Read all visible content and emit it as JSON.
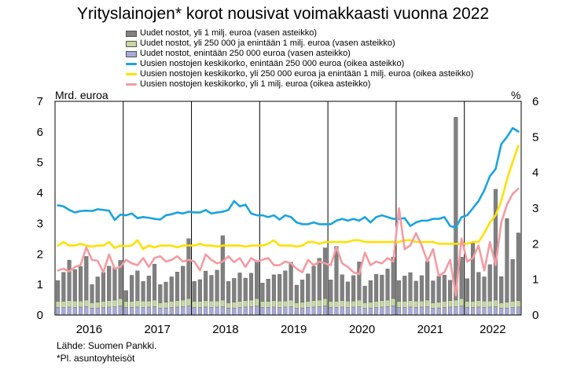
{
  "title": "Yrityslainojen* korot nousivat voimakkaasti vuonna 2022",
  "legend": [
    {
      "label": "Uudet nostot, yli 1 milj. euroa (vasen asteikko)",
      "kind": "bar",
      "color": "#808080"
    },
    {
      "label": "Uudet nostot, yli 250 000  ja enintään 1 milj. euroa (vasen asteikko)",
      "kind": "bar",
      "color": "#c7d9a0"
    },
    {
      "label": "Uudet nostot, enintään 250 000 euroa (vasen asteikko)",
      "kind": "bar",
      "color": "#a7a9da"
    },
    {
      "label": "Uusien nostojen keskikorko, enintään 250 000 euroa (oikea asteikko)",
      "kind": "line",
      "color": "#1aa3e0"
    },
    {
      "label": "Uusien nostojen keskikorko, yli 250 000 euroa ja enintään 1 milj. euroa (oikea asteikko)",
      "kind": "line",
      "color": "#ffe000"
    },
    {
      "label": "Uusien nostojen keskikorko, yli 1 milj. euroa (oikea asteikko)",
      "kind": "line",
      "color": "#f49ba1"
    }
  ],
  "left_unit": "Mrd. euroa",
  "right_unit": "%",
  "source": "Lähde: Suomen Pankki.",
  "footnote": "*Pl. asuntoyhteisöt",
  "chart_data": {
    "type": "bar+line",
    "x_tick_labels": [
      "2016",
      "2017",
      "2018",
      "2019",
      "2020",
      "2021",
      "2022"
    ],
    "y_left": {
      "ylim": [
        0,
        7
      ],
      "ticks": [
        0,
        1,
        2,
        3,
        4,
        5,
        6,
        7
      ]
    },
    "y_right": {
      "ylim": [
        0,
        6
      ],
      "ticks": [
        0,
        1,
        2,
        3,
        4,
        5,
        6
      ]
    },
    "months_per_year": 12,
    "month_count": 82,
    "grid": "vertical year separators",
    "legend_position": "top",
    "bars_stacked": [
      {
        "name": "Uudet nostot, enintään 250 000 euroa (vasen asteikko)",
        "color": "#a7a9da",
        "values": [
          0.25,
          0.25,
          0.26,
          0.25,
          0.26,
          0.27,
          0.22,
          0.23,
          0.25,
          0.26,
          0.27,
          0.3,
          0.25,
          0.25,
          0.26,
          0.25,
          0.26,
          0.27,
          0.22,
          0.23,
          0.25,
          0.26,
          0.27,
          0.3,
          0.25,
          0.25,
          0.26,
          0.25,
          0.26,
          0.27,
          0.22,
          0.23,
          0.25,
          0.26,
          0.27,
          0.3,
          0.25,
          0.25,
          0.26,
          0.25,
          0.26,
          0.27,
          0.22,
          0.23,
          0.25,
          0.26,
          0.27,
          0.3,
          0.25,
          0.25,
          0.26,
          0.25,
          0.26,
          0.27,
          0.22,
          0.23,
          0.25,
          0.26,
          0.27,
          0.3,
          0.25,
          0.25,
          0.26,
          0.25,
          0.26,
          0.27,
          0.22,
          0.23,
          0.25,
          0.26,
          0.27,
          0.3,
          0.25,
          0.25,
          0.26,
          0.25,
          0.26,
          0.27,
          0.22,
          0.23,
          0.25,
          0.26
        ]
      },
      {
        "name": "Uudet nostot, yli 250 000  ja enintään 1 milj. euroa (vasen asteikko)",
        "color": "#c7d9a0",
        "values": [
          0.2,
          0.2,
          0.21,
          0.21,
          0.2,
          0.22,
          0.18,
          0.19,
          0.2,
          0.21,
          0.22,
          0.24,
          0.2,
          0.2,
          0.21,
          0.21,
          0.2,
          0.22,
          0.18,
          0.19,
          0.2,
          0.21,
          0.22,
          0.24,
          0.2,
          0.2,
          0.21,
          0.21,
          0.2,
          0.22,
          0.18,
          0.19,
          0.2,
          0.21,
          0.22,
          0.24,
          0.2,
          0.2,
          0.21,
          0.21,
          0.2,
          0.22,
          0.18,
          0.19,
          0.2,
          0.21,
          0.22,
          0.24,
          0.2,
          0.2,
          0.21,
          0.21,
          0.2,
          0.22,
          0.18,
          0.19,
          0.2,
          0.21,
          0.22,
          0.24,
          0.2,
          0.2,
          0.21,
          0.21,
          0.2,
          0.22,
          0.18,
          0.19,
          0.2,
          0.21,
          0.22,
          0.24,
          0.2,
          0.2,
          0.21,
          0.21,
          0.2,
          0.22,
          0.18,
          0.19,
          0.2,
          0.21
        ]
      },
      {
        "name": "Uudet nostot, yli 1 milj. euroa (vasen asteikko)",
        "color": "#808080",
        "values": [
          0.68,
          0.95,
          1.33,
          1.03,
          1.13,
          1.43,
          0.6,
          0.83,
          0.95,
          1.13,
          1.06,
          1.25,
          0.35,
          0.85,
          0.98,
          0.64,
          0.82,
          1.18,
          0.6,
          0.66,
          0.8,
          0.94,
          1.11,
          1.96,
          0.65,
          0.71,
          0.97,
          0.84,
          1.01,
          2.11,
          0.7,
          0.78,
          0.93,
          0.74,
          0.88,
          1.2,
          0.6,
          0.73,
          0.85,
          0.87,
          0.99,
          1.24,
          0.58,
          0.73,
          0.9,
          1.13,
          1.37,
          1.66,
          0.7,
          1.8,
          0.85,
          0.63,
          0.83,
          1.25,
          0.55,
          0.71,
          0.88,
          0.84,
          1.02,
          1.36,
          0.68,
          0.83,
          0.92,
          0.65,
          0.83,
          1.27,
          0.72,
          0.85,
          0.86,
          0.67,
          5.99,
          1.36,
          0.74,
          1.91,
          0.93,
          0.79,
          1.19,
          3.63,
          0.86,
          2.74,
          1.37,
          2.22
        ]
      }
    ],
    "lines": [
      {
        "name": "Uusien nostojen keskikorko, enintään 250 000 euroa (oikea asteikko)",
        "color": "#1aa3e0",
        "values": [
          3.08,
          3.05,
          2.95,
          2.88,
          2.92,
          2.93,
          2.92,
          2.97,
          2.95,
          2.93,
          2.67,
          2.82,
          2.8,
          2.85,
          2.72,
          2.75,
          2.73,
          2.7,
          2.68,
          2.8,
          2.83,
          2.88,
          2.85,
          2.9,
          2.88,
          2.88,
          2.95,
          2.85,
          2.88,
          2.9,
          2.95,
          3.2,
          3.05,
          3.1,
          2.85,
          2.8,
          2.8,
          2.75,
          2.8,
          2.68,
          2.8,
          2.75,
          2.6,
          2.55,
          2.55,
          2.6,
          2.55,
          2.55,
          2.55,
          2.65,
          2.7,
          2.65,
          2.7,
          2.65,
          2.75,
          2.6,
          2.75,
          2.8,
          2.75,
          2.7,
          2.7,
          2.72,
          2.5,
          2.6,
          2.65,
          2.65,
          2.7,
          2.7,
          2.75,
          2.5,
          2.45,
          2.75,
          2.8,
          3.0,
          3.2,
          3.5,
          3.9,
          4.1,
          4.8,
          5.0,
          5.25,
          5.15
        ]
      },
      {
        "name": "Uusien nostojen keskikorko, yli 250 000 euroa ja enintään 1 milj. euroa (oikea asteikko)",
        "color": "#ffe000",
        "values": [
          1.95,
          2.05,
          1.95,
          1.95,
          2.0,
          1.95,
          1.92,
          1.95,
          1.95,
          2.05,
          1.88,
          1.95,
          1.93,
          1.95,
          2.1,
          1.85,
          1.95,
          1.9,
          1.95,
          1.95,
          1.95,
          1.9,
          1.95,
          1.95,
          1.95,
          2.0,
          1.95,
          1.95,
          1.92,
          1.95,
          1.95,
          1.95,
          1.95,
          1.92,
          1.95,
          1.95,
          1.95,
          2.0,
          2.1,
          1.95,
          1.95,
          1.95,
          1.92,
          1.95,
          2.05,
          2.05,
          2.0,
          2.05,
          2.05,
          2.05,
          2.05,
          2.05,
          2.1,
          2.1,
          2.05,
          2.05,
          2.05,
          2.05,
          2.05,
          2.05,
          2.05,
          2.1,
          2.1,
          2.05,
          2.05,
          2.05,
          2.05,
          2.0,
          2.0,
          2.0,
          2.0,
          2.0,
          2.0,
          2.05,
          2.05,
          2.3,
          2.6,
          2.8,
          3.2,
          3.8,
          4.3,
          4.75
        ]
      },
      {
        "name": "Uusien nostojen keskikorko, yli 1 milj. euroa (oikea asteikko)",
        "color": "#f49ba1",
        "values": [
          1.25,
          1.3,
          1.22,
          1.35,
          1.4,
          1.9,
          1.55,
          1.52,
          1.2,
          1.7,
          1.3,
          1.35,
          1.55,
          1.45,
          1.4,
          1.6,
          1.35,
          1.6,
          1.65,
          1.5,
          1.55,
          1.65,
          1.5,
          1.55,
          1.5,
          1.25,
          1.7,
          1.55,
          1.45,
          1.5,
          1.65,
          1.48,
          1.6,
          1.35,
          1.6,
          1.5,
          1.55,
          1.6,
          1.4,
          1.4,
          1.5,
          1.45,
          1.3,
          1.2,
          1.55,
          1.4,
          1.5,
          1.45,
          1.4,
          1.9,
          1.45,
          1.35,
          1.2,
          1.15,
          1.75,
          1.4,
          1.5,
          1.45,
          1.6,
          1.5,
          3.0,
          1.85,
          1.95,
          2.3,
          1.95,
          1.5,
          1.85,
          1.1,
          1.2,
          1.55,
          0.55,
          2.15,
          1.5,
          1.6,
          1.95,
          1.25,
          2.05,
          1.4,
          2.6,
          3.1,
          3.4,
          3.55
        ]
      }
    ]
  }
}
